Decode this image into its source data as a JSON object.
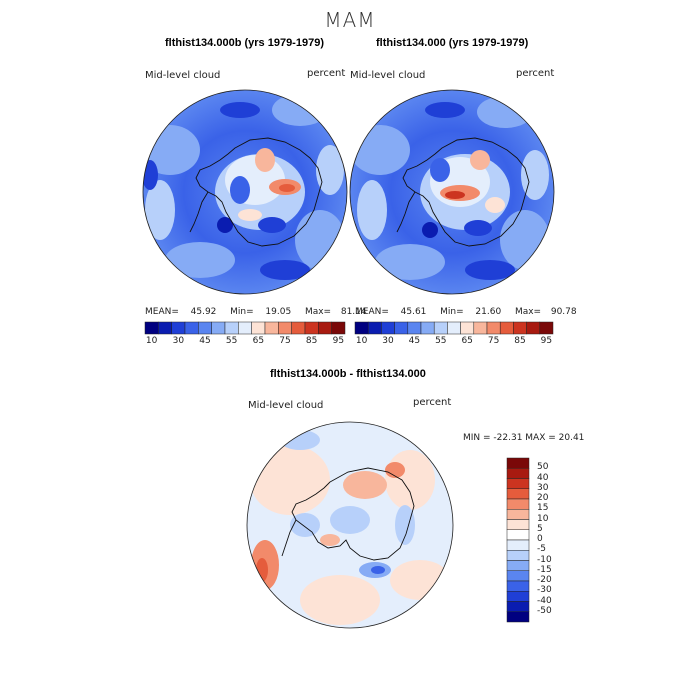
{
  "figure": {
    "title": "MAM"
  },
  "panels": [
    {
      "title": "flthist134.000b (yrs 1979-1979)",
      "variable": "Mid-level cloud",
      "units": "percent",
      "stats": {
        "mean_label": "MEAN=",
        "mean": "45.92",
        "min_label": "Min=",
        "min": "19.05",
        "max_label": "Max=",
        "max": "81.14"
      }
    },
    {
      "title": "flthist134.000 (yrs 1979-1979)",
      "variable": "Mid-level cloud",
      "units": "percent",
      "stats": {
        "mean_label": "MEAN=",
        "mean": "45.61",
        "min_label": "Min=",
        "min": "21.60",
        "max_label": "Max=",
        "max": "90.78"
      }
    }
  ],
  "diff_panel": {
    "title": "flthist134.000b - flthist134.000",
    "variable": "Mid-level cloud",
    "units": "percent",
    "minmax": "MIN = -22.31 MAX =  20.41"
  },
  "colorbar_main": {
    "labels": [
      "10",
      "30",
      "45",
      "55",
      "65",
      "75",
      "85",
      "95"
    ],
    "colors": [
      "#000080",
      "#0a1cb0",
      "#1f3fd6",
      "#3a62e8",
      "#5a85f0",
      "#86abf5",
      "#b7d0fa",
      "#e4eefc",
      "#fde3d6",
      "#f8b69c",
      "#f28a6a",
      "#e55c3c",
      "#cc3420",
      "#a81a10",
      "#7a0808"
    ]
  },
  "colorbar_diff": {
    "labels": [
      "50",
      "40",
      "30",
      "20",
      "15",
      "10",
      "5",
      "0",
      "-5",
      "-10",
      "-15",
      "-20",
      "-30",
      "-40",
      "-50"
    ],
    "colors": [
      "#7a0808",
      "#a81a10",
      "#cc3420",
      "#e55c3c",
      "#f28a6a",
      "#f8b69c",
      "#fde3d6",
      "#ffffff",
      "#e4eefc",
      "#b7d0fa",
      "#86abf5",
      "#5a85f0",
      "#3a62e8",
      "#1f3fd6",
      "#0a1cb0",
      "#000080"
    ]
  }
}
